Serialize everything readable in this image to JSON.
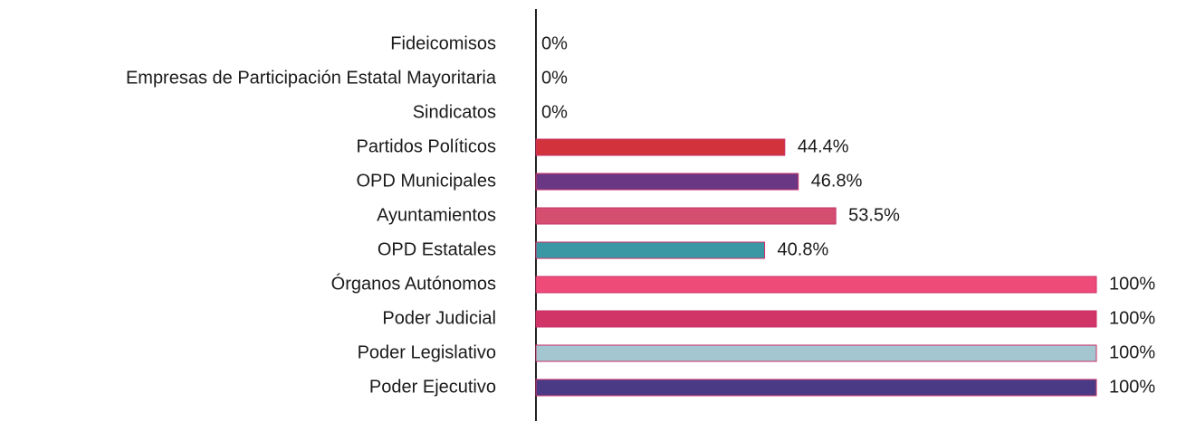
{
  "chart_data": {
    "type": "bar",
    "orientation": "horizontal",
    "categories": [
      "Fideicomisos",
      "Empresas de Participación Estatal Mayoritaria",
      "Sindicatos",
      "Partidos Políticos",
      "OPD Municipales",
      "Ayuntamientos",
      "OPD Estatales",
      "Órganos Autónomos",
      "Poder Judicial",
      "Poder Legislativo",
      "Poder Ejecutivo"
    ],
    "values": [
      0,
      0,
      0,
      44.4,
      46.8,
      53.5,
      40.8,
      100,
      100,
      100,
      100
    ],
    "value_labels": [
      "0%",
      "0%",
      "0%",
      "44.4%",
      "46.8%",
      "53.5%",
      "40.8%",
      "100%",
      "100%",
      "100%",
      "100%"
    ],
    "colors": [
      null,
      null,
      null,
      "#d1323c",
      "#6a3784",
      "#d44e70",
      "#3a97a4",
      "#ef4b79",
      "#d13466",
      "#a3c6d0",
      "#4a3a85"
    ],
    "xlim": [
      0,
      100
    ]
  }
}
